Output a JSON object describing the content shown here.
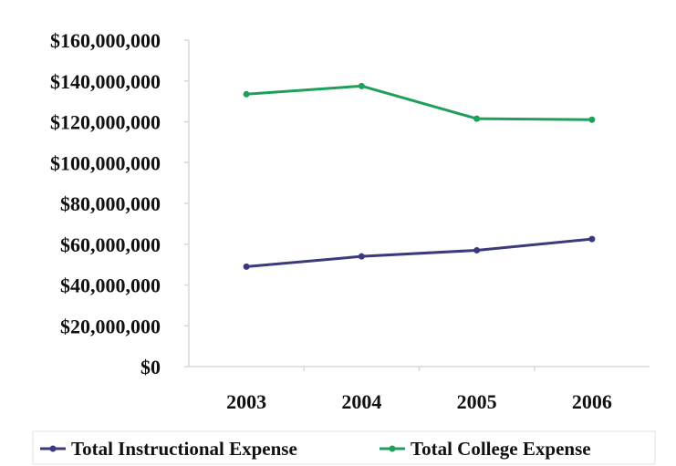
{
  "chart_data": {
    "type": "line",
    "title": "",
    "xlabel": "",
    "ylabel": "",
    "categories": [
      "2003",
      "2004",
      "2005",
      "2006"
    ],
    "ylim": [
      0,
      160000000
    ],
    "yticks": [
      0,
      20000000,
      40000000,
      60000000,
      80000000,
      100000000,
      120000000,
      140000000,
      160000000
    ],
    "ytick_labels": [
      "$0",
      "$20,000,000",
      "$40,000,000",
      "$60,000,000",
      "$80,000,000",
      "$100,000,000",
      "$120,000,000",
      "$140,000,000",
      "$160,000,000"
    ],
    "grid": false,
    "legend_position": "bottom",
    "series": [
      {
        "name": "Total Instructional Expense",
        "color": "#3b3a7a",
        "values": [
          49000000,
          54000000,
          57000000,
          62500000
        ]
      },
      {
        "name": "Total College Expense",
        "color": "#1fa05a",
        "values": [
          133500000,
          137500000,
          121500000,
          121000000
        ]
      }
    ]
  }
}
